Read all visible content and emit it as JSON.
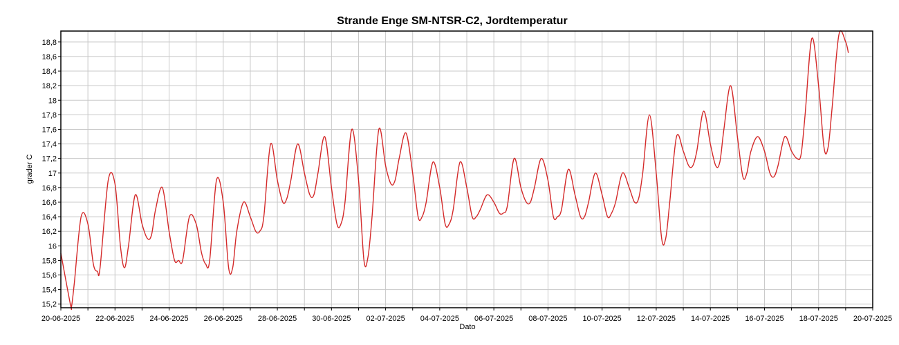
{
  "chart_data": {
    "type": "line",
    "title": "Strande Enge SM-NTSR-C2, Jordtemperatur",
    "xlabel": "Dato",
    "ylabel": "grader C",
    "x_tick_labels": [
      "20-06-2025",
      "22-06-2025",
      "24-06-2025",
      "26-06-2025",
      "28-06-2025",
      "30-06-2025",
      "02-07-2025",
      "04-07-2025",
      "06-07-2025",
      "08-07-2025",
      "10-07-2025",
      "12-07-2025",
      "14-07-2025",
      "16-07-2025",
      "18-07-2025",
      "20-07-2025"
    ],
    "x_range_days": [
      0,
      30
    ],
    "y_tick_labels": [
      "15,2",
      "15,4",
      "15,6",
      "15,8",
      "16",
      "16,2",
      "16,4",
      "16,6",
      "16,8",
      "17",
      "17,2",
      "17,4",
      "17,6",
      "17,8",
      "18",
      "18,2",
      "18,4",
      "18,6",
      "18,8"
    ],
    "ylim": [
      15.15,
      18.95
    ],
    "grid": true,
    "series": [
      {
        "color": "#d42a2a",
        "x": [
          0,
          0.35,
          0.4,
          0.5,
          0.75,
          1.0,
          1.2,
          1.35,
          1.45,
          1.75,
          2.0,
          2.2,
          2.35,
          2.5,
          2.75,
          3.0,
          3.2,
          3.35,
          3.5,
          3.75,
          4.0,
          4.2,
          4.35,
          4.5,
          4.75,
          5.0,
          5.2,
          5.35,
          5.5,
          5.75,
          6.0,
          6.2,
          6.35,
          6.5,
          6.75,
          7.0,
          7.2,
          7.35,
          7.5,
          7.75,
          8.0,
          8.2,
          8.35,
          8.5,
          8.75,
          9.0,
          9.2,
          9.35,
          9.5,
          9.75,
          10.0,
          10.2,
          10.35,
          10.5,
          10.75,
          11.0,
          11.2,
          11.35,
          11.5,
          11.75,
          12.0,
          12.2,
          12.35,
          12.5,
          12.75,
          13.0,
          13.2,
          13.35,
          13.5,
          13.75,
          14.0,
          14.2,
          14.35,
          14.5,
          14.75,
          15.0,
          15.2,
          15.35,
          15.5,
          15.75,
          16.0,
          16.2,
          16.35,
          16.5,
          16.75,
          17.0,
          17.2,
          17.35,
          17.5,
          17.75,
          18.0,
          18.2,
          18.35,
          18.5,
          18.75,
          19.0,
          19.2,
          19.35,
          19.5,
          19.75,
          20.0,
          20.2,
          20.35,
          20.5,
          20.75,
          21.0,
          21.2,
          21.35,
          21.5,
          21.75,
          22.0,
          22.2,
          22.35,
          22.5,
          22.75,
          23.0,
          23.2,
          23.35,
          23.5,
          23.75,
          24.0,
          24.2,
          24.35,
          24.5,
          24.75,
          25.0,
          25.2,
          25.35,
          25.5,
          25.75,
          26.0,
          26.2,
          26.35,
          26.5,
          26.75,
          27.0,
          27.2,
          27.35,
          27.5,
          27.75,
          28.0,
          28.2,
          28.35,
          28.5,
          28.75,
          29.0,
          29.1
        ],
        "values": [
          15.9,
          15.2,
          15.18,
          15.5,
          16.4,
          16.3,
          15.75,
          15.65,
          15.7,
          16.9,
          16.85,
          16.0,
          15.7,
          16.0,
          16.7,
          16.3,
          16.1,
          16.15,
          16.5,
          16.8,
          16.2,
          15.8,
          15.8,
          15.8,
          16.4,
          16.3,
          15.9,
          15.75,
          15.8,
          16.9,
          16.6,
          15.7,
          15.7,
          16.2,
          16.6,
          16.4,
          16.2,
          16.2,
          16.4,
          17.4,
          16.9,
          16.6,
          16.65,
          16.9,
          17.4,
          17.0,
          16.7,
          16.7,
          17.0,
          17.5,
          16.8,
          16.3,
          16.3,
          16.6,
          17.6,
          16.9,
          15.8,
          15.85,
          16.4,
          17.6,
          17.1,
          16.85,
          16.9,
          17.2,
          17.55,
          17.0,
          16.4,
          16.4,
          16.6,
          17.15,
          16.8,
          16.3,
          16.3,
          16.5,
          17.15,
          16.8,
          16.4,
          16.4,
          16.5,
          16.7,
          16.6,
          16.45,
          16.45,
          16.55,
          17.2,
          16.8,
          16.6,
          16.6,
          16.8,
          17.2,
          16.9,
          16.4,
          16.4,
          16.5,
          17.05,
          16.7,
          16.4,
          16.4,
          16.6,
          17.0,
          16.7,
          16.4,
          16.45,
          16.6,
          17.0,
          16.8,
          16.6,
          16.65,
          17.0,
          17.8,
          17.0,
          16.1,
          16.1,
          16.6,
          17.5,
          17.3,
          17.1,
          17.1,
          17.3,
          17.85,
          17.4,
          17.1,
          17.15,
          17.6,
          18.2,
          17.5,
          16.95,
          17.0,
          17.3,
          17.5,
          17.3,
          17.0,
          16.95,
          17.1,
          17.5,
          17.3,
          17.2,
          17.25,
          17.8,
          18.85,
          18.2,
          17.35,
          17.35,
          17.9,
          18.9,
          18.8,
          18.65
        ]
      }
    ]
  }
}
